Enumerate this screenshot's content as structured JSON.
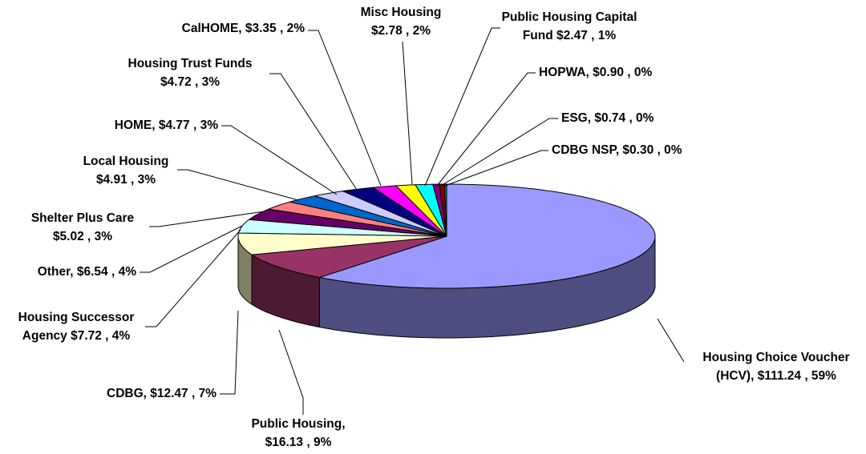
{
  "chart_data": {
    "type": "pie3d",
    "values": [
      111.24,
      16.13,
      12.47,
      7.72,
      6.54,
      5.02,
      4.91,
      4.77,
      4.72,
      3.35,
      2.78,
      2.47,
      0.9,
      0.74,
      0.3
    ],
    "value_labels": [
      [
        "Housing Choice Voucher",
        "(HCV),  $111.24 , 59%"
      ],
      [
        "Public Housing,",
        "$16.13 , 9%"
      ],
      [
        "CDBG,  $12.47 , 7%"
      ],
      [
        "Housing Successor",
        "Agency  $7.72 , 4%"
      ],
      [
        "Other,  $6.54 , 4%"
      ],
      [
        "Shelter Plus Care",
        "$5.02 , 3%"
      ],
      [
        "Local Housing",
        "$4.91 , 3%"
      ],
      [
        "HOME,  $4.77 , 3%"
      ],
      [
        "Housing Trust Funds",
        "$4.72 , 3%"
      ],
      [
        "CalHOME,  $3.35 , 2%"
      ],
      [
        "Misc Housing",
        "$2.78 , 2%"
      ],
      [
        "Public Housing Capital",
        "Fund  $2.47 , 1%"
      ],
      [
        "HOPWA,  $0.90 , 0%"
      ],
      [
        "ESG,  $0.74 , 0%"
      ],
      [
        "CDBG NSP,  $0.30 , 0%"
      ]
    ],
    "colors": [
      "#9999FF",
      "#993366",
      "#FFFFCC",
      "#CCFFFF",
      "#660066",
      "#FF8080",
      "#0066CC",
      "#CCCCFF",
      "#000080",
      "#FF00FF",
      "#FFFF00",
      "#00FFFF",
      "#800080",
      "#800000",
      "#008080"
    ]
  }
}
